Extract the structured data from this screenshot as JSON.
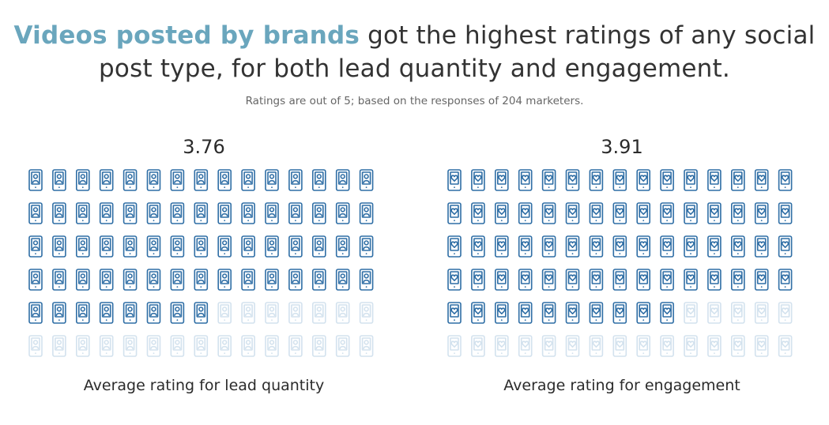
{
  "header": {
    "title_highlight": "Videos posted by brands",
    "title_rest": " got the highest ratings of any social post type, for both lead quantity and engagement.",
    "subtitle": "Ratings are out of 5; based on the responses of 204 marketers."
  },
  "colors": {
    "accent": "#6aa6bd",
    "icon_filled": "#2f6ea5",
    "icon_empty": "#d3e2ee"
  },
  "chart_data": [
    {
      "type": "pictogram",
      "icon": "phone-user-icon",
      "value": 3.76,
      "max": 5,
      "value_label": "3.76",
      "label": "Average rating for lead quantity",
      "rows": 6,
      "columns": 15,
      "filled_icons": 68
    },
    {
      "type": "pictogram",
      "icon": "phone-heart-icon",
      "value": 3.91,
      "max": 5,
      "value_label": "3.91",
      "label": "Average rating for engagement",
      "rows": 6,
      "columns": 15,
      "filled_icons": 70
    }
  ]
}
